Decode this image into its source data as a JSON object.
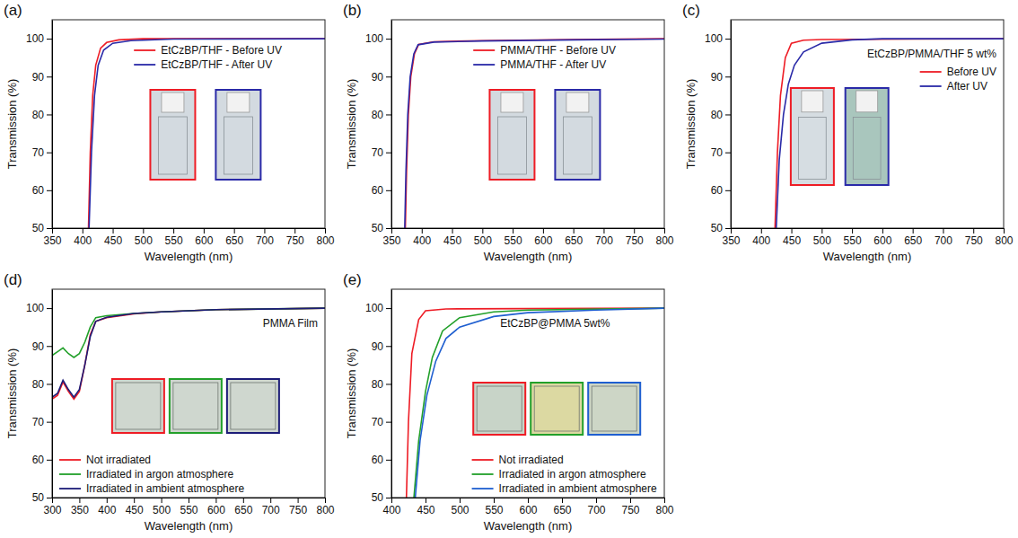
{
  "chart_data": [
    {
      "type": "line",
      "panel_label": "(a)",
      "xlabel": "Wavelength (nm)",
      "ylabel": "Transmission (%)",
      "xlim": [
        350,
        800
      ],
      "xticks": [
        350,
        400,
        450,
        500,
        550,
        600,
        650,
        700,
        750,
        800
      ],
      "ylim": [
        50,
        105
      ],
      "yticks": [
        50,
        60,
        70,
        80,
        90,
        100
      ],
      "grid": false,
      "legend": "top",
      "series": [
        {
          "name": "EtCzBP/THF - Before UV",
          "color": "#ee1c25",
          "x": [
            410,
            413,
            417,
            422,
            430,
            440,
            460,
            500,
            800
          ],
          "values": [
            50,
            70,
            85,
            93,
            97.5,
            99,
            99.7,
            100,
            100
          ]
        },
        {
          "name": "EtCzBP/THF - After UV",
          "color": "#2a2aa8",
          "x": [
            411,
            415,
            420,
            426,
            435,
            450,
            480,
            550,
            800
          ],
          "values": [
            50,
            70,
            85,
            93,
            97,
            98.8,
            99.5,
            99.9,
            100
          ]
        }
      ]
    },
    {
      "type": "line",
      "panel_label": "(b)",
      "xlabel": "Wavelength (nm)",
      "ylabel": "Transmission (%)",
      "xlim": [
        350,
        800
      ],
      "xticks": [
        350,
        400,
        450,
        500,
        550,
        600,
        650,
        700,
        750,
        800
      ],
      "ylim": [
        50,
        105
      ],
      "yticks": [
        50,
        60,
        70,
        80,
        90,
        100
      ],
      "grid": false,
      "legend": "top",
      "series": [
        {
          "name": "PMMA/THF - Before UV",
          "color": "#ee1c25",
          "x": [
            373,
            375,
            378,
            382,
            388,
            395,
            420,
            500,
            650,
            800
          ],
          "values": [
            50,
            65,
            80,
            90,
            96,
            98.5,
            99.2,
            99.5,
            99.8,
            100
          ]
        },
        {
          "name": "PMMA/THF - After UV",
          "color": "#2a2aa8",
          "x": [
            372,
            374,
            377,
            381,
            387,
            394,
            420,
            500,
            650,
            800
          ],
          "values": [
            50,
            65,
            80,
            90,
            96,
            98.4,
            99.1,
            99.4,
            99.7,
            99.9
          ]
        }
      ]
    },
    {
      "type": "line",
      "panel_label": "(c)",
      "xlabel": "Wavelength (nm)",
      "ylabel": "Transmission (%)",
      "annotation": "EtCzBP/PMMA/THF 5 wt%",
      "xlim": [
        350,
        800
      ],
      "xticks": [
        350,
        400,
        450,
        500,
        550,
        600,
        650,
        700,
        750,
        800
      ],
      "ylim": [
        50,
        105
      ],
      "yticks": [
        50,
        60,
        70,
        80,
        90,
        100
      ],
      "grid": false,
      "legend": "top-right",
      "series": [
        {
          "name": "Before UV",
          "color": "#ee1c25",
          "x": [
            423,
            427,
            432,
            440,
            450,
            470,
            500,
            800
          ],
          "values": [
            50,
            70,
            85,
            95,
            98.8,
            99.6,
            99.8,
            100
          ]
        },
        {
          "name": "After UV",
          "color": "#2a2aa8",
          "x": [
            425,
            430,
            437,
            445,
            455,
            470,
            500,
            550,
            600,
            800
          ],
          "values": [
            50,
            68,
            80,
            88,
            93,
            96.5,
            98.8,
            99.7,
            100,
            100
          ]
        }
      ]
    },
    {
      "type": "line",
      "panel_label": "(d)",
      "xlabel": "Wavelength (nm)",
      "ylabel": "Transmission (%)",
      "annotation": "PMMA Film",
      "xlim": [
        300,
        800
      ],
      "xticks": [
        300,
        350,
        400,
        450,
        500,
        550,
        600,
        650,
        700,
        750,
        800
      ],
      "ylim": [
        50,
        105
      ],
      "yticks": [
        50,
        60,
        70,
        80,
        90,
        100
      ],
      "grid": false,
      "legend": "bottom-left",
      "series": [
        {
          "name": "Not irradiated",
          "color": "#ee1c25",
          "x": [
            300,
            310,
            320,
            330,
            340,
            350,
            360,
            370,
            380,
            400,
            450,
            500,
            600,
            700,
            800
          ],
          "values": [
            76,
            77,
            80.5,
            78,
            76,
            78,
            85,
            93,
            96.5,
            97.5,
            98.5,
            99,
            99.6,
            99.8,
            100
          ]
        },
        {
          "name": "Irradiated in argon atmosphere",
          "color": "#22a02a",
          "x": [
            300,
            310,
            320,
            330,
            340,
            350,
            360,
            370,
            380,
            400,
            450,
            500,
            600,
            800
          ],
          "values": [
            87.5,
            88.5,
            89.5,
            88,
            87,
            88,
            91,
            95,
            97.5,
            98,
            98.6,
            99,
            99.6,
            100
          ]
        },
        {
          "name": "Irradiated in ambient atmosphere",
          "color": "#1c1c78",
          "x": [
            300,
            310,
            320,
            330,
            340,
            350,
            360,
            370,
            380,
            400,
            450,
            500,
            600,
            800
          ],
          "values": [
            76.5,
            77.5,
            81,
            78.5,
            76.5,
            78.5,
            85,
            92.5,
            96.5,
            97.6,
            98.6,
            99,
            99.6,
            100
          ]
        }
      ]
    },
    {
      "type": "line",
      "panel_label": "(e)",
      "xlabel": "Wavelength (nm)",
      "ylabel": "Transmission (%)",
      "annotation": "EtCzBP@PMMA 5wt%",
      "xlim": [
        400,
        800
      ],
      "xticks": [
        400,
        450,
        500,
        550,
        600,
        650,
        700,
        750,
        800
      ],
      "ylim": [
        50,
        105
      ],
      "yticks": [
        50,
        60,
        70,
        80,
        90,
        100
      ],
      "grid": false,
      "legend": "bottom-right",
      "series": [
        {
          "name": "Not irradiated",
          "color": "#ee1c25",
          "x": [
            422,
            425,
            430,
            440,
            450,
            480,
            800
          ],
          "values": [
            50,
            70,
            88,
            97,
            99.3,
            99.8,
            100
          ]
        },
        {
          "name": "Irradiated in argon atmosphere",
          "color": "#22a02a",
          "x": [
            433,
            440,
            450,
            460,
            475,
            500,
            550,
            600,
            800
          ],
          "values": [
            50,
            65,
            78,
            87,
            94,
            97.5,
            99,
            99.5,
            100
          ]
        },
        {
          "name": "Irradiated in ambient atmosphere",
          "color": "#1f5fd0",
          "x": [
            435,
            442,
            452,
            465,
            480,
            500,
            550,
            600,
            700,
            800
          ],
          "values": [
            50,
            65,
            77,
            86,
            92,
            95,
            97.8,
            98.8,
            99.5,
            100
          ]
        }
      ]
    }
  ]
}
